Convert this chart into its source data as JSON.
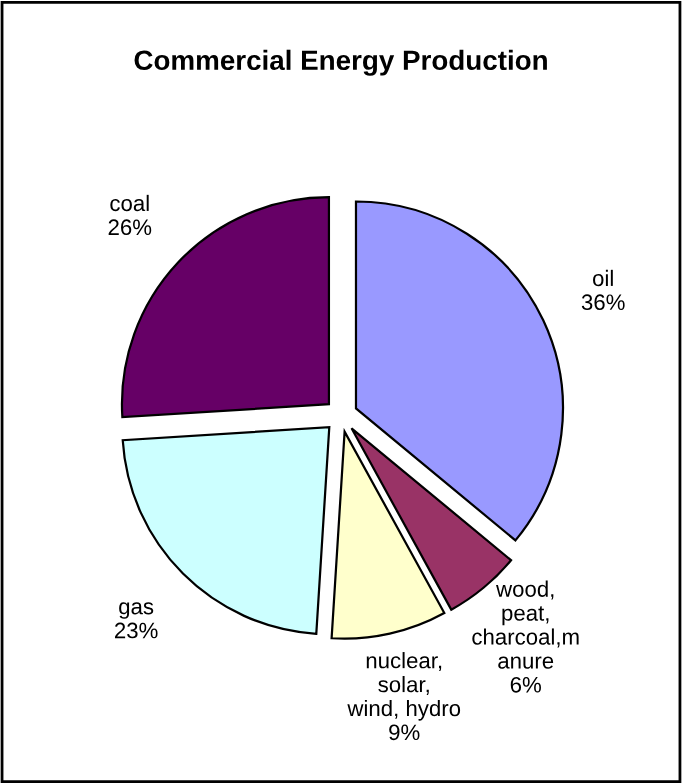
{
  "chart_data": {
    "type": "pie",
    "title": "Commercial Energy Production",
    "categories": [
      "oil",
      "wood,\npeat,\ncharcoal,m\nanure",
      "nuclear,\nsolar,\nwind, hydro",
      "gas",
      "coal"
    ],
    "values": [
      36,
      6,
      9,
      23,
      26
    ],
    "value_labels": [
      "36%",
      "6%",
      "9%",
      "23%",
      "26%"
    ],
    "colors": [
      "#9999ff",
      "#993366",
      "#ffffcc",
      "#ccffff",
      "#660066"
    ],
    "legend": false
  }
}
